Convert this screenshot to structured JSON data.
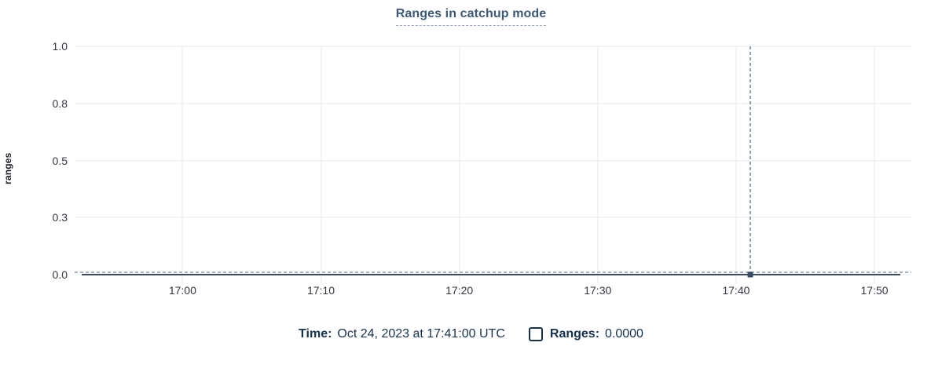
{
  "chart": {
    "title": "Ranges in catchup mode"
  },
  "chart_data": {
    "type": "line",
    "title": "Ranges in catchup mode",
    "xlabel": "",
    "ylabel": "ranges",
    "ylim": [
      0,
      1
    ],
    "grid": true,
    "x_domain": {
      "start": "16:52:12",
      "end": "17:52:40"
    },
    "y_ticks": [
      {
        "label": "1.0",
        "value": 1.0
      },
      {
        "label": "0.8",
        "value": 0.75
      },
      {
        "label": "0.5",
        "value": 0.5
      },
      {
        "label": "0.3",
        "value": 0.25
      },
      {
        "label": "0.0",
        "value": 0.0
      }
    ],
    "x_ticks": [
      {
        "label": "17:00",
        "time": "17:00:00"
      },
      {
        "label": "17:10",
        "time": "17:10:00"
      },
      {
        "label": "17:20",
        "time": "17:20:00"
      },
      {
        "label": "17:30",
        "time": "17:30:00"
      },
      {
        "label": "17:40",
        "time": "17:40:00"
      },
      {
        "label": "17:50",
        "time": "17:50:00"
      }
    ],
    "series": [
      {
        "name": "Ranges",
        "start": "16:52:42",
        "end": "17:51:54",
        "value": 0.0,
        "color": "#3b4a63"
      }
    ],
    "annotation_line": {
      "value": 0.01,
      "style": "dashed",
      "color": "#a5b4c0"
    },
    "crosshair": {
      "time": "17:41:00",
      "color": "#8da0b3"
    },
    "highlighted_point": {
      "time": "17:41:00",
      "value": 0.0,
      "color": "#3b4a63"
    },
    "legend_position": "bottom"
  },
  "legend": {
    "time_label": "Time:",
    "time_value": "Oct 24, 2023 at 17:41:00 UTC",
    "series_label": "Ranges:",
    "series_value": "0.0000",
    "checkbox_checked": false
  },
  "colors": {
    "series": "#3b4a63",
    "crosshair": "#8da0b3",
    "annotation": "#a5b4c0",
    "gridline": "#e8e9eb",
    "legend_text": "#16324f",
    "title_text": "#3d5878"
  }
}
